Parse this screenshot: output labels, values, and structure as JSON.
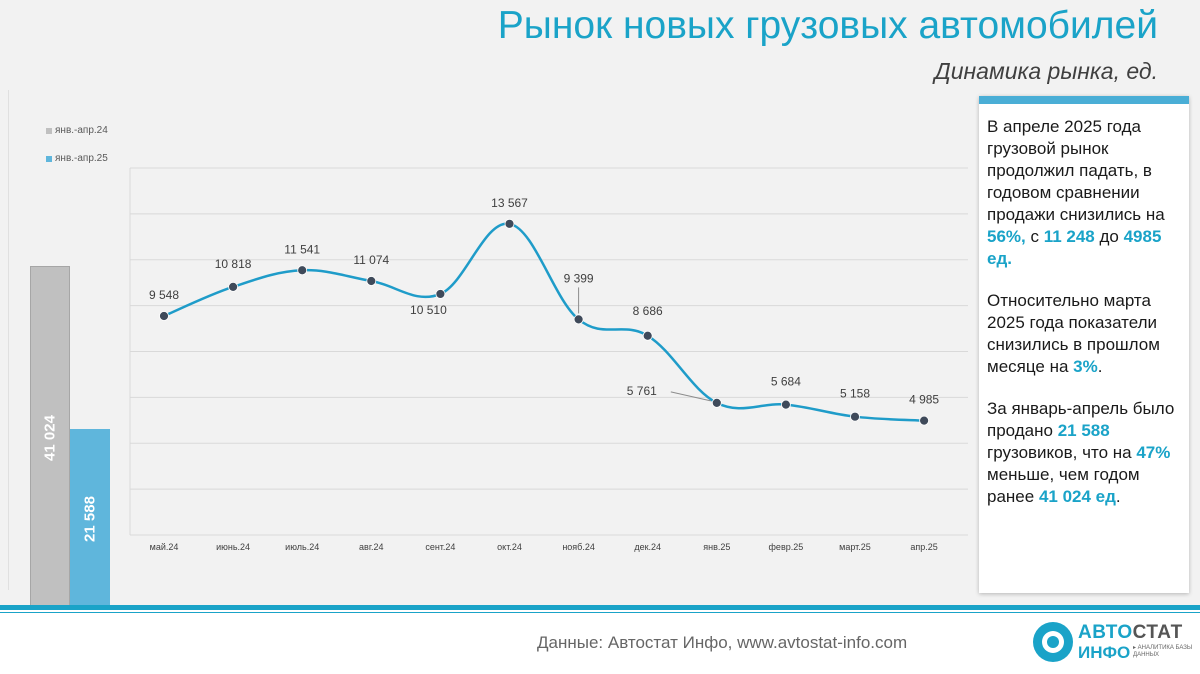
{
  "header": {
    "title": "Рынок новых грузовых автомобилей",
    "subtitle": "Динамика рынка, ед."
  },
  "chart_data": [
    {
      "type": "bar",
      "series": [
        {
          "name": "янв.-апр.24",
          "value": 41024,
          "label": "41 024",
          "color": "#c0c0c0"
        },
        {
          "name": "янв.-апр.25",
          "value": 21588,
          "label": "21 588",
          "color": "#5fb6dc"
        }
      ]
    },
    {
      "type": "line",
      "categories": [
        "май.24",
        "июнь.24",
        "июль.24",
        "авг.24",
        "сент.24",
        "окт.24",
        "нояб.24",
        "дек.24",
        "янв.25",
        "февр.25",
        "март.25",
        "апр.25"
      ],
      "values": [
        9548,
        10818,
        11541,
        11074,
        10510,
        13567,
        9399,
        8686,
        5761,
        5684,
        5158,
        4985
      ],
      "labels": [
        "9 548",
        "10 818",
        "11 541",
        "11 074",
        "10 510",
        "13 567",
        "9 399",
        "8 686",
        "5 761",
        "5 684",
        "5 158",
        "4 985"
      ],
      "ylim": [
        0,
        16000
      ],
      "grid": true,
      "line_color": "#1f9cc9",
      "marker_color": "#3f4a5a"
    }
  ],
  "info": {
    "p1": {
      "t1": "В апреле 2025 года грузовой рынок продолжил падать, в годовом сравнении продажи снизились на ",
      "h1": "56%,",
      "t2": " с ",
      "h2": "11 248",
      "t3": " до ",
      "h3": "4985 ед."
    },
    "p2": {
      "t1": "Относительно марта 2025 года показатели снизились в прошлом месяце на ",
      "h1": "3%",
      "t2": "."
    },
    "p3": {
      "t1": "За январь-апрель было продано ",
      "h1": "21 588",
      "t2": " грузовиков, что на ",
      "h2": "47%",
      "t3": " меньше, чем годом ранее ",
      "h3": "41 024 ед",
      "t4": "."
    }
  },
  "footer": {
    "source": "Данные: Автостат Инфо, www.avtostat-info.com",
    "logo_top_a": "АВТО",
    "logo_top_b": "СТАТ",
    "logo_bottom": "ИНФО",
    "logo_tagline": "▸ АНАЛИТИКА БАЗЫ ДАННЫХ"
  },
  "colors": {
    "accent": "#1aa3c8",
    "bar_2024": "#c0c0c0",
    "bar_2025": "#5fb6dc"
  }
}
